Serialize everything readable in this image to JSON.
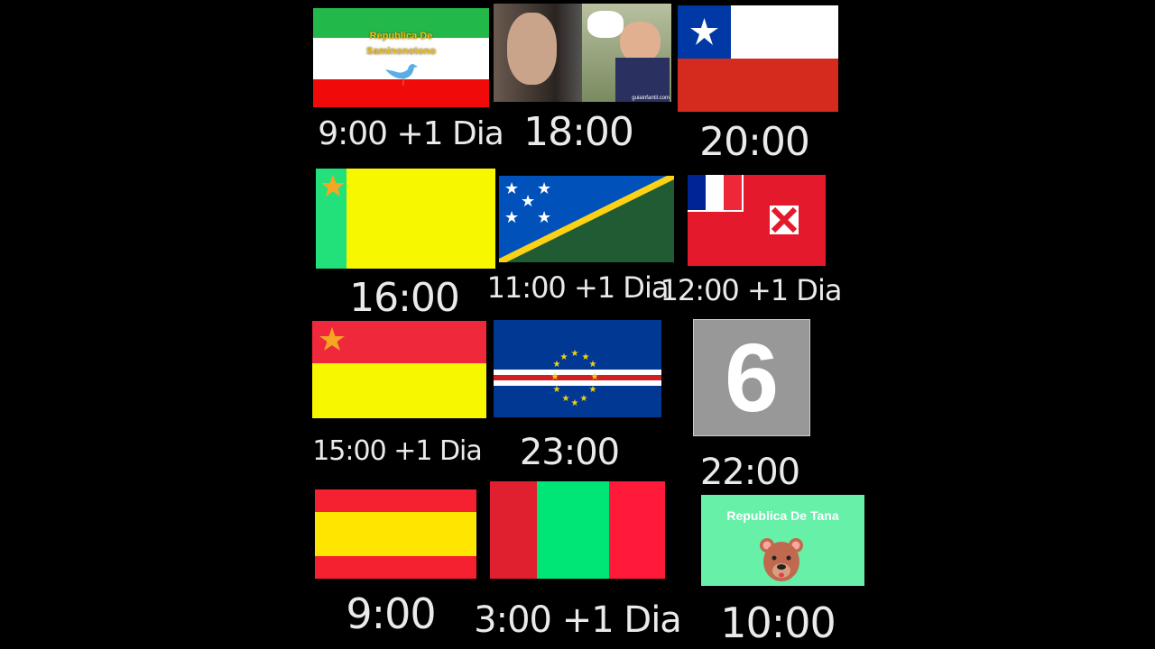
{
  "items": [
    {
      "time": "9:00 +1 Dia",
      "flag_text_1": "Republica De",
      "flag_text_2": "Saminonotono",
      "icon": "bird-icon"
    },
    {
      "time": "18:00",
      "image": "two-children-photo",
      "watermark": "guiainfantil.com"
    },
    {
      "time": "20:00",
      "flag": "chile"
    },
    {
      "time": "16:00",
      "flag": "green-yellow-star"
    },
    {
      "time": "11:00 +1 Dia",
      "flag": "solomon-islands"
    },
    {
      "time": "12:00 +1 Dia",
      "flag": "wallis-and-futuna"
    },
    {
      "time": "15:00 +1 Dia",
      "flag": "red-yellow-star"
    },
    {
      "time": "23:00",
      "flag": "cape-verde"
    },
    {
      "time": "22:00",
      "tile_number": "6"
    },
    {
      "time": "9:00",
      "flag": "spain"
    },
    {
      "time": "3:00 +1 Dia",
      "flag": "red-green-red"
    },
    {
      "time": "10:00",
      "flag_text_1": "Republica De Tana",
      "icon": "bear-icon"
    }
  ],
  "colors": {
    "background": "#000000",
    "text": "#eaeaea"
  }
}
